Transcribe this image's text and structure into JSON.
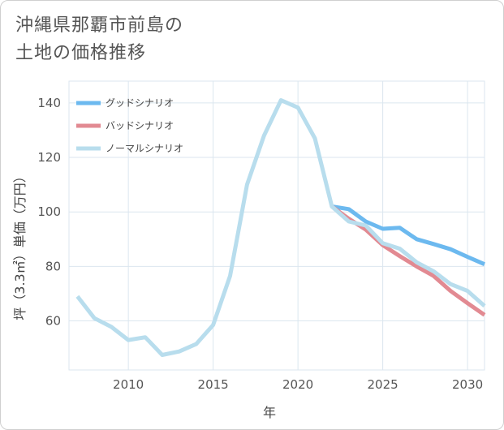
{
  "title_lines": [
    "沖縄県那覇市前島の",
    "土地の価格推移"
  ],
  "colors": {
    "good": "#6cb9ef",
    "bad": "#e28a92",
    "normal": "#b8dded",
    "grid": "#dbe6ef",
    "background": "#ffffff"
  },
  "chart_data": {
    "type": "line",
    "title": "沖縄県那覇市前島の土地の価格推移",
    "xlabel": "年",
    "ylabel": "坪（3.3㎡）単価（万円）",
    "xlim": [
      2006.5,
      2031
    ],
    "ylim": [
      42,
      148
    ],
    "xticks": [
      2010,
      2015,
      2020,
      2025,
      2030
    ],
    "yticks": [
      60,
      80,
      100,
      120,
      140
    ],
    "grid": true,
    "legend_position": "top-left",
    "series": [
      {
        "name": "グッドシナリオ",
        "color": "#6cb9ef",
        "x": [
          2022,
          2023,
          2024,
          2025,
          2026,
          2027,
          2028,
          2029,
          2030,
          2031
        ],
        "y": [
          102,
          101,
          96.5,
          93.8,
          94.2,
          90,
          88.2,
          86.3,
          83.5,
          80.8
        ]
      },
      {
        "name": "バッドシナリオ",
        "color": "#e28a92",
        "x": [
          2022,
          2023,
          2024,
          2025,
          2026,
          2027,
          2028,
          2029,
          2030,
          2031
        ],
        "y": [
          102,
          97.5,
          93.5,
          87.8,
          83.8,
          80,
          76.5,
          71,
          66.5,
          62.2
        ]
      },
      {
        "name": "ノーマルシナリオ",
        "color": "#b8dded",
        "x": [
          2007,
          2008,
          2009,
          2010,
          2011,
          2012,
          2013,
          2014,
          2015,
          2016,
          2017,
          2018,
          2019,
          2020,
          2021,
          2022,
          2023,
          2024,
          2025,
          2026,
          2027,
          2028,
          2029,
          2030,
          2031
        ],
        "y": [
          69,
          61,
          57.8,
          53,
          54,
          47.5,
          48.8,
          51.5,
          58.5,
          76.5,
          110,
          128,
          141,
          138.3,
          127,
          102,
          96.5,
          95,
          88.5,
          86.5,
          81.5,
          78.2,
          73.5,
          71,
          65.5
        ]
      }
    ]
  }
}
